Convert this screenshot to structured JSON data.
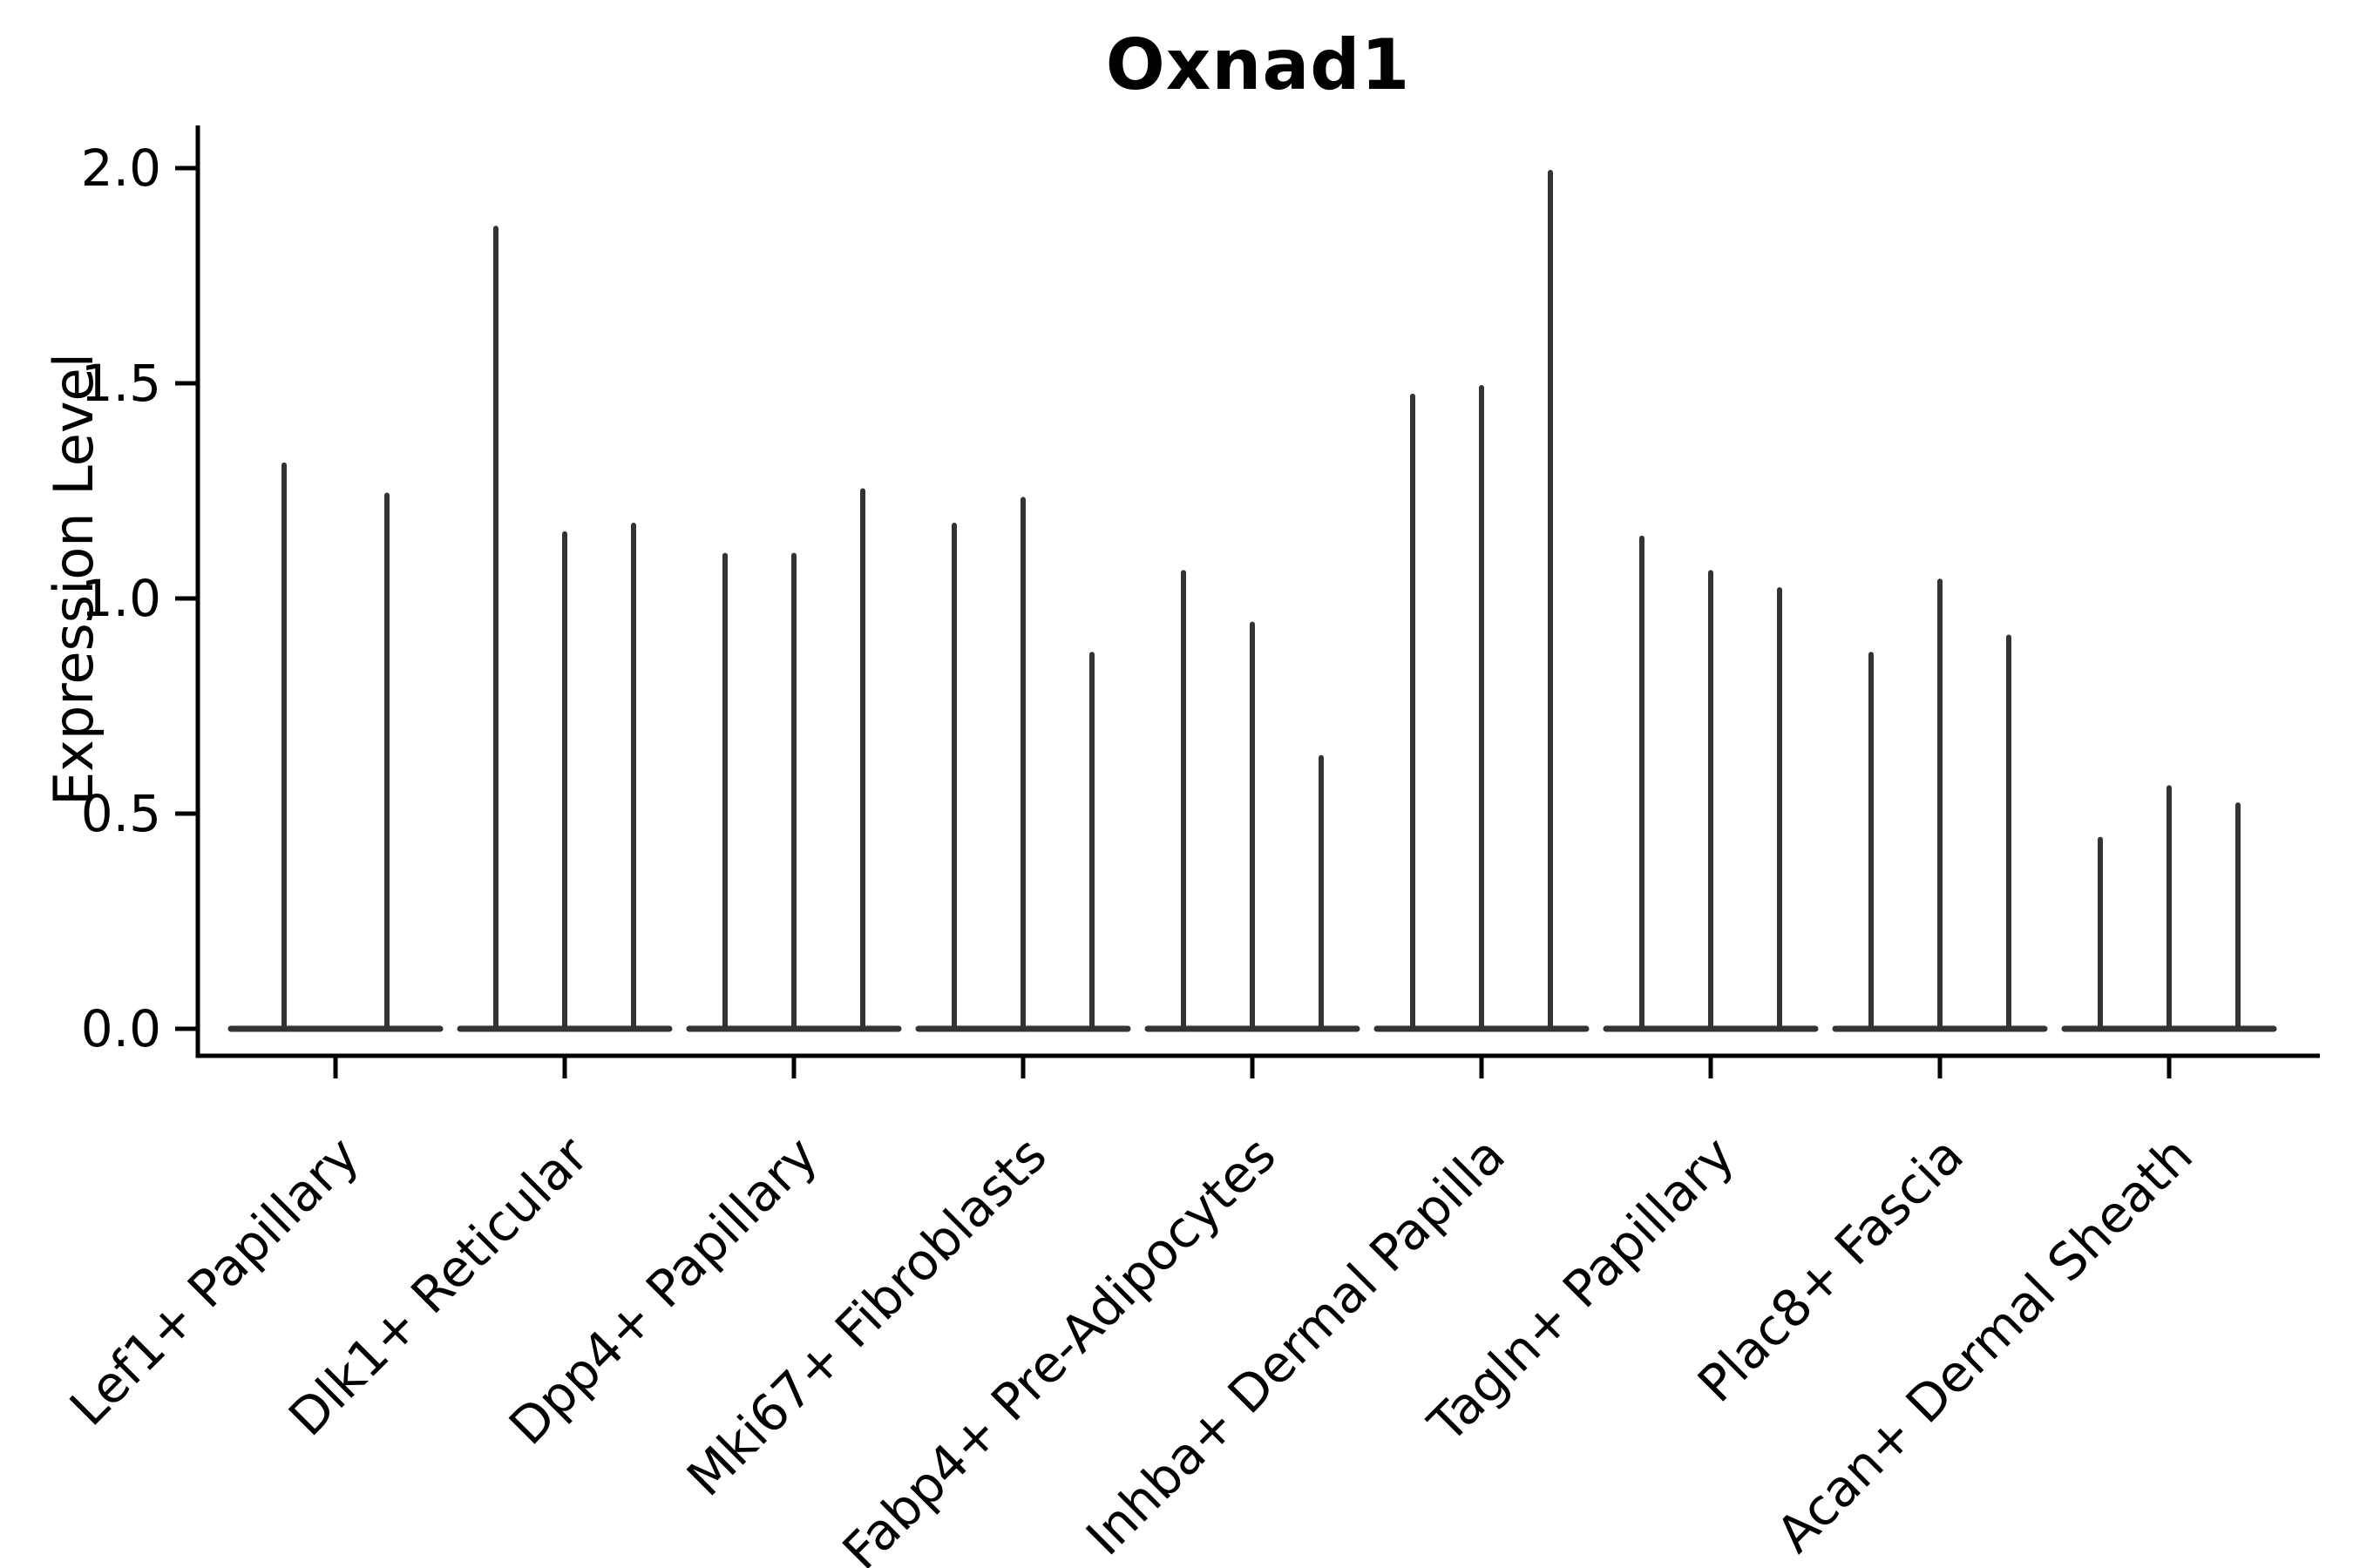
{
  "chart_data": {
    "type": "violin",
    "title": "Oxnad1",
    "ylabel": "Expression Level",
    "xlabel": "",
    "ytick_labels": [
      "0.0",
      "0.5",
      "1.0",
      "1.5",
      "2.0"
    ],
    "ylim": [
      -0.06,
      2.1
    ],
    "grid": false,
    "legend_position": "none",
    "categories": [
      "Lef1+ Papillary",
      "Dlk1+ Reticular",
      "Dpp4+ Papillary",
      "Mki67+ Fibroblasts",
      "Fabp4+ Pre-Adipocytes",
      "Inhba+ Dermal Papilla",
      "Tagln+ Papillary",
      "Plac8+ Fascia",
      "Acan+ Dermal Sheath"
    ],
    "groups": [
      {
        "category": "Lef1+ Papillary",
        "violin_max_values": [
          1.31,
          1.24
        ]
      },
      {
        "category": "Dlk1+ Reticular",
        "violin_max_values": [
          1.86,
          1.15,
          1.17
        ]
      },
      {
        "category": "Dpp4+ Papillary",
        "violin_max_values": [
          1.1,
          1.1,
          1.25
        ]
      },
      {
        "category": "Mki67+ Fibroblasts",
        "violin_max_values": [
          1.17,
          1.23,
          0.87
        ]
      },
      {
        "category": "Fabp4+ Pre-Adipocytes",
        "violin_max_values": [
          1.06,
          0.94,
          0.63
        ]
      },
      {
        "category": "Inhba+ Dermal Papilla",
        "violin_max_values": [
          1.47,
          1.49,
          1.99
        ]
      },
      {
        "category": "Tagln+ Papillary",
        "violin_max_values": [
          1.14,
          1.06,
          1.02
        ]
      },
      {
        "category": "Plac8+ Fascia",
        "violin_max_values": [
          0.87,
          1.04,
          0.91
        ]
      },
      {
        "category": "Acan+ Dermal Sheath",
        "violin_max_values": [
          0.44,
          0.56,
          0.52
        ]
      }
    ],
    "violins_per_group_note": "each violin collapsed to a thin spike at 0 with max at listed value",
    "colors": {
      "violin_edge": "#333333",
      "axis": "#000000",
      "text": "#000000",
      "background": "#ffffff"
    }
  }
}
